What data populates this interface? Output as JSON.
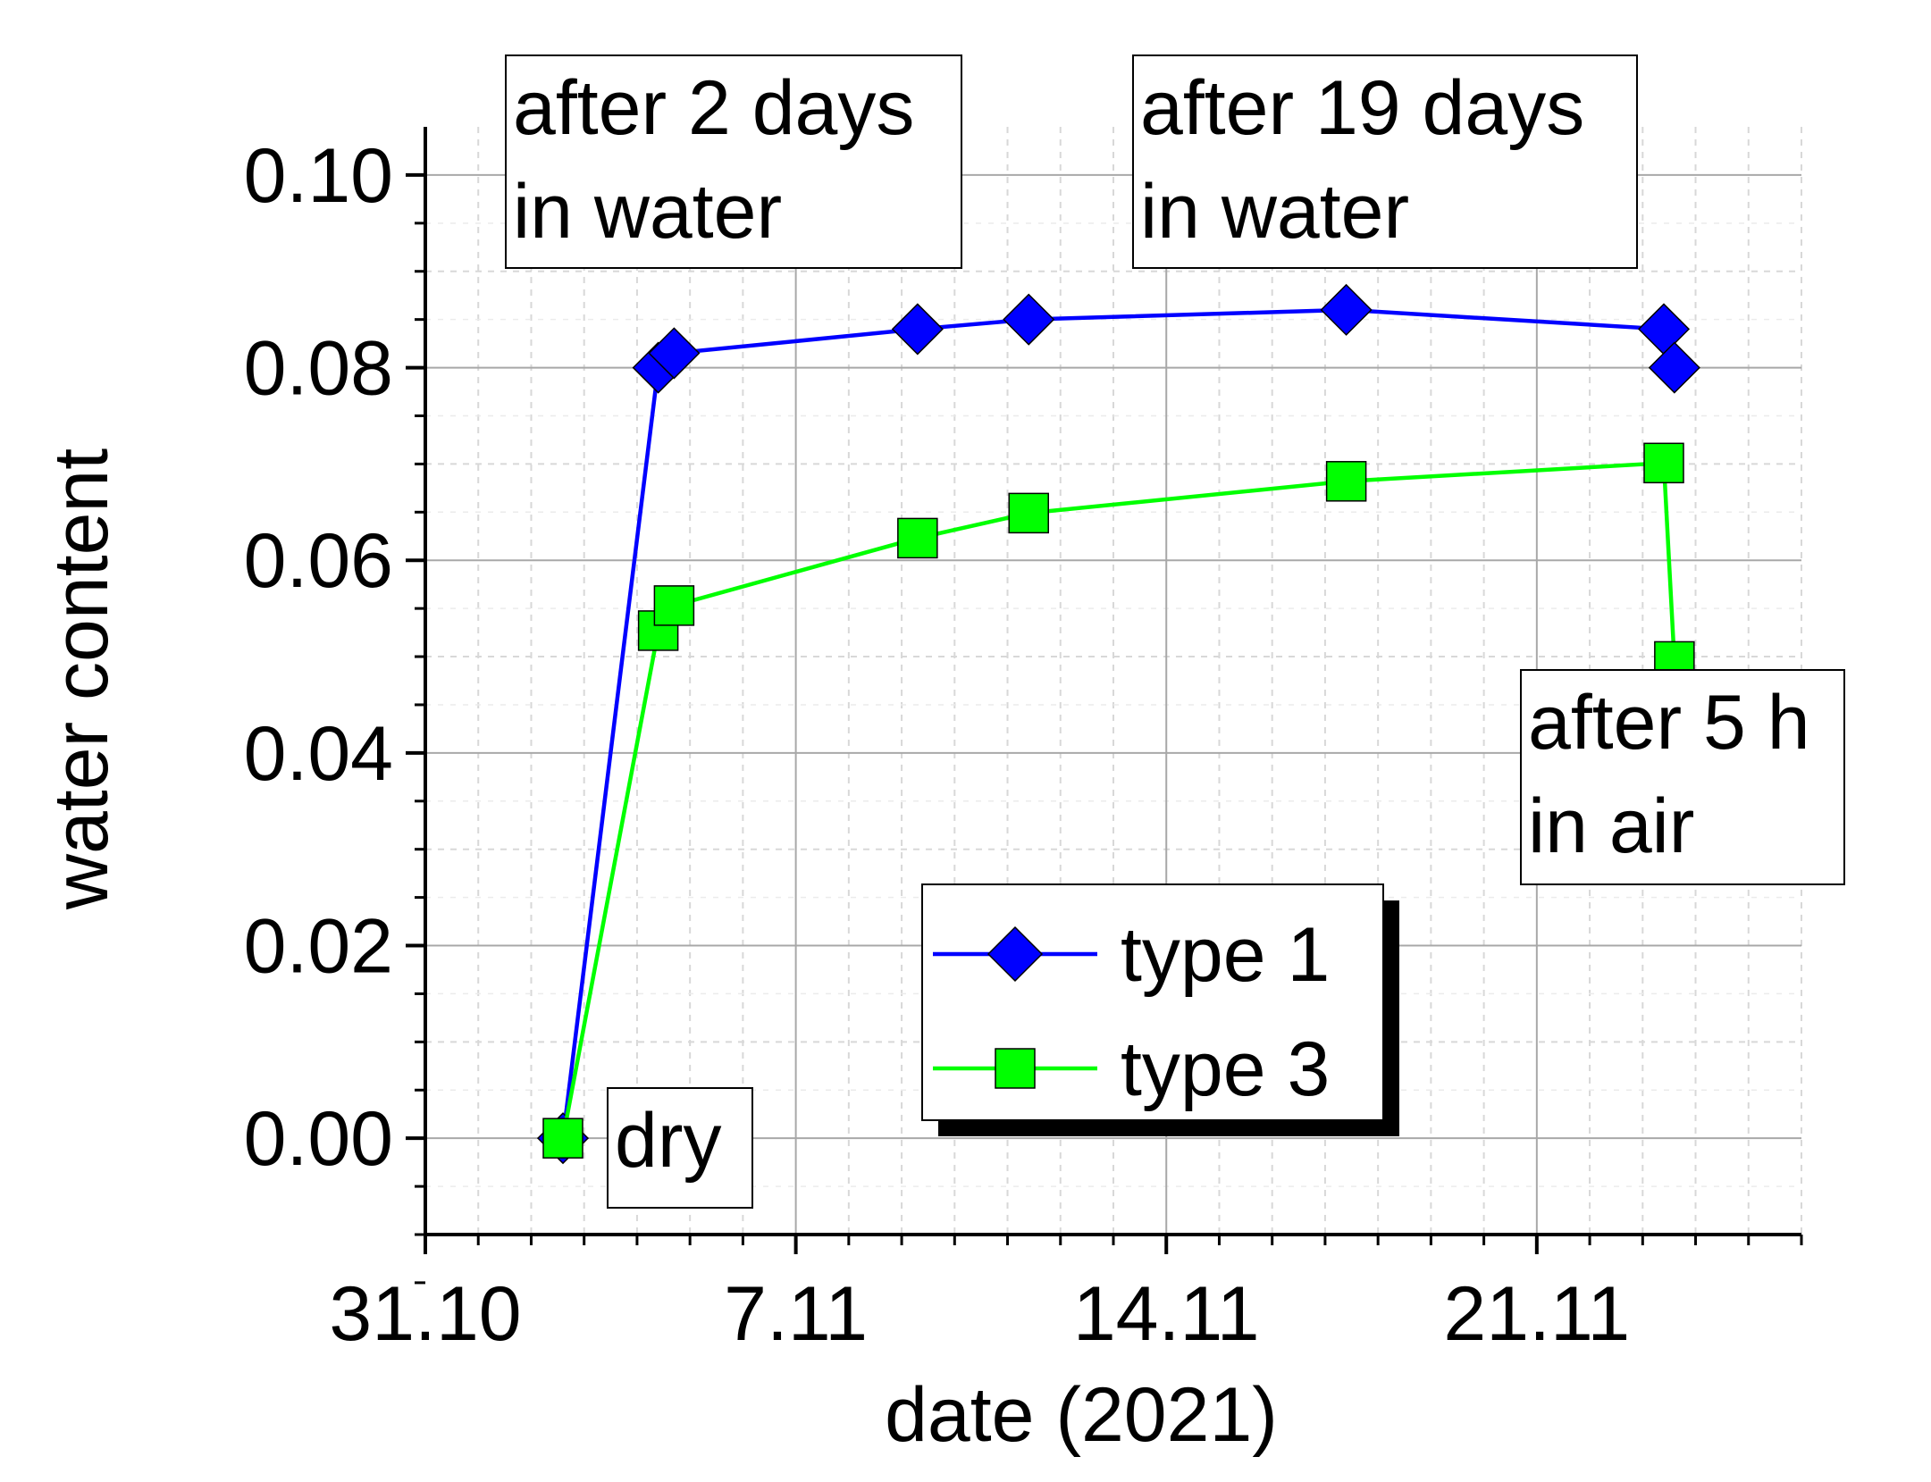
{
  "chart_data": {
    "type": "line",
    "title": "",
    "xlabel": "date (2021)",
    "ylabel": "water content",
    "xlim": [
      0,
      26
    ],
    "ylim": [
      -0.01,
      0.105
    ],
    "x_ticks": [
      {
        "value": 0,
        "label": "31.10"
      },
      {
        "value": 7,
        "label": "7.11"
      },
      {
        "value": 14,
        "label": "14.11"
      },
      {
        "value": 21,
        "label": "21.11"
      }
    ],
    "y_ticks": [
      {
        "value": 0.0,
        "label": "0.00"
      },
      {
        "value": 0.02,
        "label": "0.02"
      },
      {
        "value": 0.04,
        "label": "0.04"
      },
      {
        "value": 0.06,
        "label": "0.06"
      },
      {
        "value": 0.08,
        "label": "0.08"
      },
      {
        "value": 0.1,
        "label": "0.10"
      }
    ],
    "grid": true,
    "legend_position": "lower-right",
    "series": [
      {
        "name": "type 1",
        "color": "#0000ff",
        "marker": "diamond",
        "x": [
          2.6,
          4.4,
          4.7,
          9.3,
          11.4,
          17.4,
          23.4,
          23.6
        ],
        "y": [
          0.0,
          0.08,
          0.0815,
          0.084,
          0.085,
          0.086,
          0.084,
          0.08
        ]
      },
      {
        "name": "type 3",
        "color": "#00ff00",
        "marker": "square",
        "x": [
          2.6,
          4.4,
          4.7,
          9.3,
          11.4,
          17.4,
          23.4,
          23.6
        ],
        "y": [
          0.0,
          0.0527,
          0.0553,
          0.0623,
          0.0649,
          0.0682,
          0.0701,
          0.0495
        ]
      }
    ],
    "annotations": [
      {
        "id": "after-2-days",
        "lines": [
          "after 2 days",
          "in water"
        ]
      },
      {
        "id": "after-19-days",
        "lines": [
          "after 19 days",
          "in water"
        ]
      },
      {
        "id": "after-5h",
        "lines": [
          "after 5 h",
          "in air"
        ]
      },
      {
        "id": "dry",
        "lines": [
          "dry"
        ]
      }
    ]
  }
}
